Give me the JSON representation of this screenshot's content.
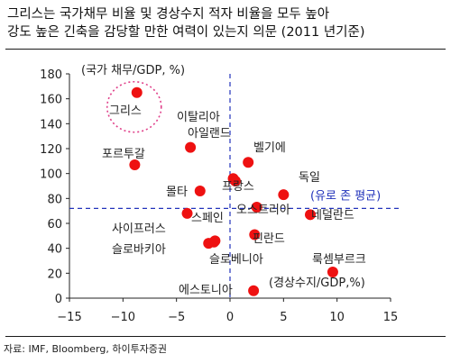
{
  "title": {
    "line1": "그리스는 국가채무 비율 및 경상수지 적자 비율을 모두 높아",
    "line2": "강도 높은 긴축을 감당할 만한 여력이 있는지 의문 (2011 년기준)"
  },
  "source": "자료: IMF, Bloomberg, 하이투자증권",
  "chart_data": {
    "type": "scatter",
    "ylabel": "(국가 채무/GDP, %)",
    "xlabel": "(경상수지/GDP,%)",
    "xlim": [
      -15,
      15
    ],
    "ylim": [
      0,
      180
    ],
    "xticks": [
      -15,
      -10,
      -5,
      0,
      5,
      10,
      15
    ],
    "yticks": [
      0,
      20,
      40,
      60,
      80,
      100,
      120,
      140,
      160,
      180
    ],
    "reference_lines": {
      "x": 0,
      "y": 72,
      "label": "(유로 존 평균)"
    },
    "points": [
      {
        "name": "그리스",
        "x": -8.7,
        "y": 165,
        "highlight": true
      },
      {
        "name": "이탈리아",
        "x": -3.7,
        "y": 121
      },
      {
        "name": "포르투갈",
        "x": -8.9,
        "y": 107
      },
      {
        "name": "아일랜드",
        "x": 1.7,
        "y": 109
      },
      {
        "name": "벨기에",
        "x": 0.3,
        "y": 96
      },
      {
        "name": "독일",
        "x": 5.0,
        "y": 83
      },
      {
        "name": "몰타",
        "x": -2.8,
        "y": 86
      },
      {
        "name": "프랑스",
        "x": 0.5,
        "y": 94
      },
      {
        "name": "오스트리아",
        "x": 2.5,
        "y": 73
      },
      {
        "name": "네덜란드",
        "x": 7.5,
        "y": 67
      },
      {
        "name": "사이프러스",
        "x": -4.0,
        "y": 68
      },
      {
        "name": "스페인",
        "x": -1.5,
        "y": 45
      },
      {
        "name": "슬로바키아",
        "x": -2.0,
        "y": 44
      },
      {
        "name": "핀란드",
        "x": 2.3,
        "y": 51
      },
      {
        "name": "슬로베니아",
        "x": -1.4,
        "y": 46
      },
      {
        "name": "룩셈부르크",
        "x": 9.6,
        "y": 21
      },
      {
        "name": "에스토니아",
        "x": 2.2,
        "y": 6
      }
    ],
    "colors": {
      "point": "#ee1111",
      "reference_line": "#2233bb",
      "highlight_circle": "#e0408a"
    }
  }
}
